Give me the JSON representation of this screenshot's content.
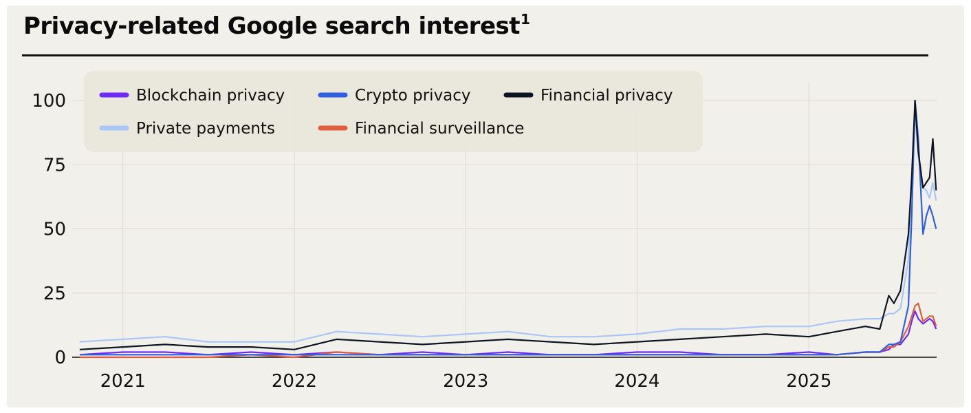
{
  "title": "Privacy-related Google search interest",
  "title_footnote": "1",
  "colors": {
    "background": "#f2f0ea",
    "legend_box": "#e9e6dc",
    "grid": "#d9d7d0"
  },
  "chart_data": {
    "type": "line",
    "title": "Privacy-related Google search interest",
    "xlabel": "",
    "ylabel": "",
    "ylim": [
      0,
      100
    ],
    "xlim": [
      "2020-09-15",
      "2025-09-30"
    ],
    "x_ticks": [
      "2021",
      "2022",
      "2023",
      "2024",
      "2025"
    ],
    "y_ticks": [
      0,
      25,
      50,
      75,
      100
    ],
    "grid": true,
    "legend_position": "top-left",
    "x": [
      "2020-10-01",
      "2021-01-01",
      "2021-04-01",
      "2021-07-01",
      "2021-10-01",
      "2022-01-01",
      "2022-04-01",
      "2022-07-01",
      "2022-10-01",
      "2023-01-01",
      "2023-04-01",
      "2023-07-01",
      "2023-10-01",
      "2024-01-01",
      "2024-04-01",
      "2024-07-01",
      "2024-10-01",
      "2025-01-01",
      "2025-03-01",
      "2025-05-01",
      "2025-06-01",
      "2025-06-20",
      "2025-07-01",
      "2025-07-15",
      "2025-08-01",
      "2025-08-08",
      "2025-08-15",
      "2025-08-22",
      "2025-09-01",
      "2025-09-08",
      "2025-09-15",
      "2025-09-22",
      "2025-09-29"
    ],
    "series": [
      {
        "name": "Blockchain privacy",
        "color": "#6f2bf5",
        "values": [
          1,
          2,
          2,
          1,
          2,
          1,
          2,
          1,
          2,
          1,
          2,
          1,
          1,
          2,
          2,
          1,
          1,
          2,
          1,
          2,
          2,
          3,
          5,
          5,
          9,
          14,
          18,
          15,
          13,
          14,
          15,
          14,
          11
        ]
      },
      {
        "name": "Crypto privacy",
        "color": "#2f5fe0",
        "values": [
          1,
          1,
          1,
          1,
          1,
          1,
          1,
          1,
          1,
          1,
          1,
          1,
          1,
          1,
          1,
          1,
          1,
          1,
          1,
          2,
          2,
          5,
          5,
          6,
          20,
          55,
          100,
          85,
          48,
          55,
          59,
          55,
          50
        ]
      },
      {
        "name": "Financial privacy",
        "color": "#0d1422",
        "values": [
          3,
          4,
          5,
          4,
          4,
          3,
          7,
          6,
          5,
          6,
          7,
          6,
          5,
          6,
          7,
          8,
          9,
          8,
          10,
          12,
          11,
          24,
          21,
          26,
          48,
          70,
          100,
          80,
          66,
          68,
          70,
          85,
          65
        ]
      },
      {
        "name": "Private payments",
        "color": "#a9c6f6",
        "values": [
          6,
          7,
          8,
          6,
          6,
          6,
          10,
          9,
          8,
          9,
          10,
          8,
          8,
          9,
          11,
          11,
          12,
          12,
          14,
          15,
          15,
          17,
          17,
          19,
          38,
          70,
          95,
          78,
          66,
          65,
          62,
          68,
          61
        ]
      },
      {
        "name": "Financial surveillance",
        "color": "#e15e3d",
        "values": [
          0,
          0,
          0,
          0,
          1,
          0,
          2,
          1,
          1,
          1,
          1,
          1,
          1,
          1,
          1,
          1,
          1,
          1,
          1,
          2,
          2,
          4,
          4,
          6,
          12,
          16,
          20,
          21,
          14,
          15,
          16,
          16,
          12
        ]
      }
    ]
  }
}
